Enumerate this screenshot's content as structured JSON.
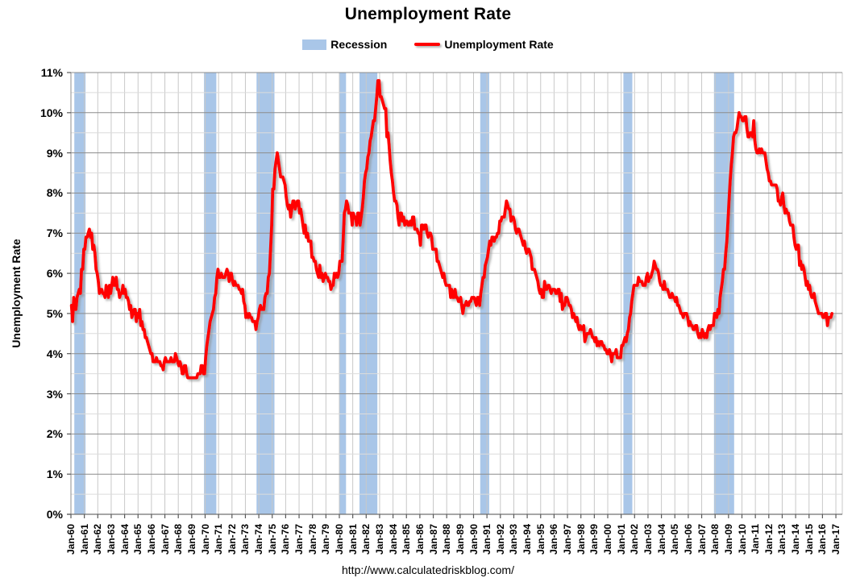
{
  "header": {
    "title": "Unemployment Rate"
  },
  "legend": {
    "recession_label": "Recession",
    "series_label": "Unemployment Rate"
  },
  "axes": {
    "y_title": "Unemployment Rate",
    "y_tick_labels": [
      "0%",
      "1%",
      "2%",
      "3%",
      "4%",
      "5%",
      "6%",
      "7%",
      "8%",
      "9%",
      "10%",
      "11%"
    ],
    "x_tick_labels": [
      "Jan-60",
      "Jan-61",
      "Jan-62",
      "Jan-63",
      "Jan-64",
      "Jan-65",
      "Jan-66",
      "Jan-67",
      "Jan-68",
      "Jan-69",
      "Jan-70",
      "Jan-71",
      "Jan-72",
      "Jan-73",
      "Jan-74",
      "Jan-75",
      "Jan-76",
      "Jan-77",
      "Jan-78",
      "Jan-79",
      "Jan-80",
      "Jan-81",
      "Jan-82",
      "Jan-83",
      "Jan-84",
      "Jan-85",
      "Jan-86",
      "Jan-87",
      "Jan-88",
      "Jan-89",
      "Jan-90",
      "Jan-91",
      "Jan-92",
      "Jan-93",
      "Jan-94",
      "Jan-95",
      "Jan-96",
      "Jan-97",
      "Jan-98",
      "Jan-99",
      "Jan-00",
      "Jan-01",
      "Jan-02",
      "Jan-03",
      "Jan-04",
      "Jan-05",
      "Jan-06",
      "Jan-07",
      "Jan-08",
      "Jan-09",
      "Jan-10",
      "Jan-11",
      "Jan-12",
      "Jan-13",
      "Jan-14",
      "Jan-15",
      "Jan-16",
      "Jan-17"
    ]
  },
  "footer": {
    "source_url": "http://www.calculatedriskblog.com/"
  },
  "colors": {
    "series_line": "#FF0000",
    "line_shadow": "#999999",
    "recession_band": "#A9C6E8",
    "grid_major": "#8C8C8C",
    "grid_minor": "#DCDCDC",
    "grid_vertical": "#C8C8C8",
    "axis_line": "#707070",
    "tick": "#595959",
    "text": "#000000"
  },
  "chart_data": {
    "type": "line",
    "title": "Unemployment Rate",
    "xlabel": "",
    "ylabel": "Unemployment Rate",
    "ylim": [
      0,
      11
    ],
    "y_major_step": 1,
    "y_minor_step": 0.5,
    "x_range_years": [
      1960,
      2017.5
    ],
    "x_tick_step_years": 1,
    "grid": true,
    "legend_position": "top-center",
    "recessions": [
      {
        "label": "1960-61",
        "start_year": 1960.25,
        "end_year": 1961.083
      },
      {
        "label": "1969-70",
        "start_year": 1969.917,
        "end_year": 1970.833
      },
      {
        "label": "1973-75",
        "start_year": 1973.833,
        "end_year": 1975.167
      },
      {
        "label": "1980",
        "start_year": 1980.0,
        "end_year": 1980.5
      },
      {
        "label": "1981-82",
        "start_year": 1981.5,
        "end_year": 1982.833
      },
      {
        "label": "1990-91",
        "start_year": 1990.5,
        "end_year": 1991.167
      },
      {
        "label": "2001",
        "start_year": 2001.167,
        "end_year": 2001.833
      },
      {
        "label": "2007-09",
        "start_year": 2007.917,
        "end_year": 2009.417
      }
    ],
    "series": [
      {
        "name": "Unemployment Rate",
        "color": "#FF0000",
        "frequency": "monthly",
        "start": "1960-01",
        "end": "2016-09",
        "values": [
          5.2,
          4.8,
          5.4,
          5.2,
          5.1,
          5.4,
          5.5,
          5.6,
          5.5,
          6.1,
          6.1,
          6.6,
          6.6,
          6.9,
          6.9,
          7.0,
          7.1,
          6.9,
          7.0,
          6.6,
          6.7,
          6.5,
          6.1,
          6.0,
          5.8,
          5.5,
          5.6,
          5.6,
          5.5,
          5.5,
          5.4,
          5.7,
          5.6,
          5.4,
          5.7,
          5.5,
          5.7,
          5.9,
          5.7,
          5.7,
          5.9,
          5.6,
          5.6,
          5.4,
          5.5,
          5.5,
          5.7,
          5.5,
          5.6,
          5.4,
          5.4,
          5.3,
          5.1,
          5.2,
          4.9,
          5.0,
          5.1,
          5.1,
          4.8,
          5.0,
          4.9,
          5.1,
          4.7,
          4.8,
          4.6,
          4.6,
          4.4,
          4.4,
          4.3,
          4.2,
          4.1,
          4.0,
          4.0,
          3.8,
          3.8,
          3.8,
          3.9,
          3.8,
          3.8,
          3.8,
          3.7,
          3.7,
          3.6,
          3.8,
          3.9,
          3.8,
          3.8,
          3.8,
          3.8,
          3.9,
          3.8,
          3.8,
          3.8,
          4.0,
          3.9,
          3.8,
          3.7,
          3.8,
          3.7,
          3.5,
          3.5,
          3.7,
          3.7,
          3.5,
          3.4,
          3.4,
          3.4,
          3.4,
          3.4,
          3.4,
          3.4,
          3.4,
          3.4,
          3.5,
          3.5,
          3.5,
          3.7,
          3.7,
          3.5,
          3.5,
          3.9,
          4.2,
          4.4,
          4.6,
          4.8,
          4.9,
          5.0,
          5.1,
          5.4,
          5.5,
          5.9,
          6.1,
          5.9,
          5.9,
          6.0,
          5.9,
          5.9,
          5.9,
          6.0,
          6.1,
          6.0,
          5.8,
          6.0,
          6.0,
          5.8,
          5.7,
          5.8,
          5.7,
          5.7,
          5.7,
          5.6,
          5.6,
          5.5,
          5.6,
          5.3,
          5.2,
          4.9,
          5.0,
          4.9,
          5.0,
          4.9,
          4.9,
          4.8,
          4.8,
          4.8,
          4.6,
          4.8,
          4.9,
          5.1,
          5.2,
          5.1,
          5.1,
          5.1,
          5.4,
          5.5,
          5.5,
          5.9,
          6.0,
          6.6,
          7.2,
          8.1,
          8.1,
          8.6,
          8.8,
          9.0,
          8.8,
          8.6,
          8.4,
          8.4,
          8.4,
          8.3,
          8.2,
          7.9,
          7.7,
          7.6,
          7.7,
          7.4,
          7.6,
          7.8,
          7.8,
          7.6,
          7.7,
          7.8,
          7.8,
          7.5,
          7.6,
          7.4,
          7.2,
          7.0,
          7.2,
          6.9,
          7.0,
          6.8,
          6.8,
          6.8,
          6.4,
          6.4,
          6.3,
          6.3,
          6.1,
          6.0,
          5.9,
          6.2,
          5.9,
          6.0,
          5.8,
          5.9,
          6.0,
          5.9,
          5.9,
          5.8,
          5.8,
          5.6,
          5.7,
          5.7,
          6.0,
          5.9,
          6.0,
          5.9,
          6.0,
          6.3,
          6.3,
          6.3,
          6.9,
          7.5,
          7.6,
          7.8,
          7.7,
          7.5,
          7.5,
          7.5,
          7.2,
          7.5,
          7.4,
          7.4,
          7.2,
          7.5,
          7.5,
          7.2,
          7.4,
          7.6,
          7.9,
          8.3,
          8.5,
          8.6,
          8.9,
          9.0,
          9.3,
          9.4,
          9.6,
          9.8,
          9.8,
          10.1,
          10.4,
          10.8,
          10.8,
          10.4,
          10.4,
          10.3,
          10.2,
          10.1,
          10.1,
          9.4,
          9.5,
          9.2,
          8.8,
          8.5,
          8.3,
          8.0,
          7.8,
          7.8,
          7.7,
          7.4,
          7.2,
          7.5,
          7.5,
          7.3,
          7.4,
          7.2,
          7.3,
          7.3,
          7.2,
          7.2,
          7.3,
          7.2,
          7.4,
          7.4,
          7.1,
          7.1,
          7.1,
          7.0,
          7.0,
          6.7,
          7.2,
          7.2,
          7.1,
          7.2,
          7.2,
          7.0,
          6.9,
          7.0,
          7.0,
          6.9,
          6.6,
          6.6,
          6.6,
          6.6,
          6.3,
          6.3,
          6.2,
          6.1,
          6.0,
          5.9,
          6.0,
          5.8,
          5.7,
          5.7,
          5.7,
          5.7,
          5.4,
          5.6,
          5.4,
          5.4,
          5.6,
          5.4,
          5.4,
          5.3,
          5.3,
          5.4,
          5.2,
          5.0,
          5.2,
          5.2,
          5.3,
          5.2,
          5.2,
          5.3,
          5.3,
          5.4,
          5.4,
          5.4,
          5.3,
          5.2,
          5.4,
          5.4,
          5.2,
          5.5,
          5.7,
          5.9,
          5.9,
          6.2,
          6.3,
          6.4,
          6.6,
          6.8,
          6.7,
          6.9,
          6.9,
          6.8,
          6.9,
          6.9,
          7.0,
          7.0,
          7.3,
          7.3,
          7.4,
          7.4,
          7.4,
          7.6,
          7.8,
          7.7,
          7.6,
          7.6,
          7.3,
          7.4,
          7.4,
          7.3,
          7.1,
          7.0,
          7.1,
          7.1,
          7.0,
          6.9,
          6.8,
          6.7,
          6.8,
          6.6,
          6.5,
          6.6,
          6.6,
          6.5,
          6.4,
          6.1,
          6.1,
          6.1,
          6.0,
          5.9,
          5.8,
          5.6,
          5.5,
          5.6,
          5.4,
          5.4,
          5.8,
          5.6,
          5.6,
          5.7,
          5.7,
          5.6,
          5.5,
          5.6,
          5.6,
          5.6,
          5.5,
          5.5,
          5.6,
          5.6,
          5.3,
          5.5,
          5.1,
          5.2,
          5.2,
          5.4,
          5.4,
          5.3,
          5.2,
          5.2,
          5.1,
          4.9,
          5.0,
          4.9,
          4.8,
          4.9,
          4.7,
          4.6,
          4.7,
          4.6,
          4.6,
          4.7,
          4.3,
          4.4,
          4.5,
          4.5,
          4.5,
          4.6,
          4.5,
          4.4,
          4.4,
          4.3,
          4.4,
          4.2,
          4.3,
          4.2,
          4.3,
          4.3,
          4.2,
          4.2,
          4.1,
          4.1,
          4.0,
          4.0,
          4.1,
          4.0,
          3.8,
          4.0,
          4.0,
          4.0,
          4.1,
          3.9,
          3.9,
          3.9,
          3.9,
          4.2,
          4.2,
          4.3,
          4.4,
          4.3,
          4.5,
          4.6,
          4.9,
          5.0,
          5.3,
          5.5,
          5.7,
          5.7,
          5.7,
          5.7,
          5.9,
          5.8,
          5.8,
          5.8,
          5.7,
          5.7,
          5.7,
          5.9,
          6.0,
          5.8,
          5.9,
          5.9,
          6.0,
          6.1,
          6.3,
          6.2,
          6.1,
          6.1,
          6.0,
          5.8,
          5.7,
          5.7,
          5.6,
          5.8,
          5.6,
          5.6,
          5.6,
          5.5,
          5.4,
          5.4,
          5.5,
          5.4,
          5.4,
          5.3,
          5.4,
          5.2,
          5.2,
          5.1,
          5.0,
          5.0,
          4.9,
          5.0,
          5.0,
          5.0,
          4.9,
          4.7,
          4.8,
          4.7,
          4.7,
          4.6,
          4.6,
          4.7,
          4.7,
          4.5,
          4.4,
          4.5,
          4.4,
          4.6,
          4.5,
          4.4,
          4.5,
          4.4,
          4.6,
          4.7,
          4.6,
          4.7,
          4.7,
          4.7,
          5.0,
          5.0,
          4.9,
          5.1,
          5.0,
          5.4,
          5.6,
          5.8,
          6.1,
          6.1,
          6.5,
          6.8,
          7.3,
          7.8,
          8.3,
          8.7,
          9.0,
          9.4,
          9.5,
          9.5,
          9.6,
          9.8,
          10.0,
          9.9,
          9.9,
          9.8,
          9.8,
          9.9,
          9.9,
          9.6,
          9.4,
          9.4,
          9.5,
          9.5,
          9.4,
          9.8,
          9.3,
          9.1,
          9.0,
          9.0,
          9.1,
          9.0,
          9.1,
          9.0,
          9.0,
          9.0,
          8.8,
          8.6,
          8.5,
          8.3,
          8.3,
          8.2,
          8.2,
          8.2,
          8.2,
          8.2,
          8.1,
          7.8,
          7.8,
          7.7,
          7.9,
          8.0,
          7.7,
          7.5,
          7.6,
          7.5,
          7.5,
          7.3,
          7.2,
          7.2,
          7.2,
          6.9,
          6.7,
          6.6,
          6.7,
          6.7,
          6.2,
          6.3,
          6.1,
          6.2,
          6.1,
          5.9,
          5.7,
          5.8,
          5.6,
          5.7,
          5.5,
          5.4,
          5.4,
          5.5,
          5.3,
          5.2,
          5.1,
          5.0,
          5.0,
          5.0,
          5.0,
          4.9,
          4.9,
          5.0,
          5.0,
          4.7,
          4.9,
          4.9,
          4.9,
          5.0
        ]
      }
    ]
  }
}
